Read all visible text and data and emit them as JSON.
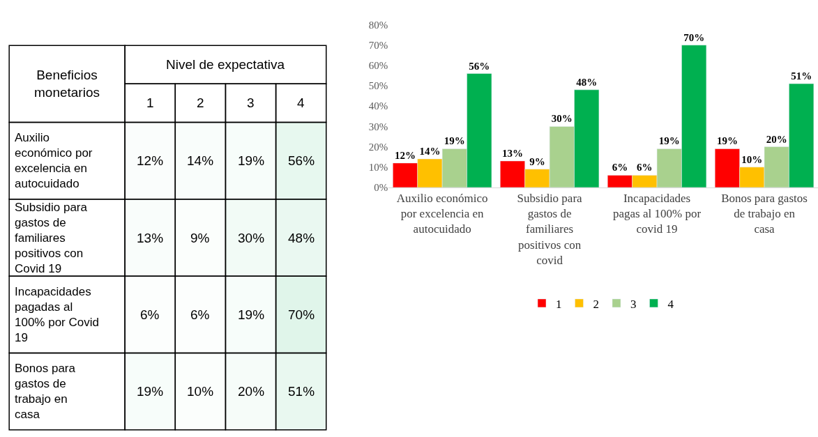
{
  "chart_data": [
    {
      "type": "heatmap",
      "xlabel": "Nivel de expectativa",
      "ylabel": "Beneficios monetarios",
      "categories": [
        "1",
        "2",
        "3",
        "4"
      ],
      "y_categories": [
        "Auxilio económico por excelencia en autocuidado",
        "Subsidio para gastos de familiares positivos con Covid 19",
        "Incapacidades pagadas al 100% por Covid 19",
        "Bonos para gastos de trabajo en casa"
      ],
      "cells": [
        [
          12,
          14,
          19,
          56
        ],
        [
          13,
          9,
          30,
          48
        ],
        [
          6,
          6,
          19,
          70
        ],
        [
          19,
          10,
          20,
          51
        ]
      ],
      "cell_labels": [
        [
          "12%",
          "14%",
          "19%",
          "56%"
        ],
        [
          "13%",
          "9%",
          "30%",
          "48%"
        ],
        [
          "6%",
          "6%",
          "19%",
          "70%"
        ],
        [
          "19%",
          "10%",
          "20%",
          "51%"
        ]
      ]
    },
    {
      "type": "bar",
      "categories": [
        "Auxilio económico por excelencia en autocuidado",
        "Subsidio para gastos de familiares positivos con covid",
        "Incapacidades pagas al 100% por covid 19",
        "Bonos para gastos de trabajo en casa"
      ],
      "series": [
        {
          "name": "1",
          "color": "#ff0000",
          "values": [
            12,
            13,
            6,
            19
          ],
          "value_labels": [
            "12%",
            "13%",
            "6%",
            "19%"
          ]
        },
        {
          "name": "2",
          "color": "#ffc000",
          "values": [
            14,
            9,
            6,
            10
          ],
          "value_labels": [
            "14%",
            "9%",
            "6%",
            "10%"
          ]
        },
        {
          "name": "3",
          "color": "#a9d18e",
          "values": [
            19,
            30,
            19,
            20
          ],
          "value_labels": [
            "19%",
            "30%",
            "19%",
            "20%"
          ]
        },
        {
          "name": "4",
          "color": "#00b050",
          "values": [
            56,
            48,
            70,
            51
          ],
          "value_labels": [
            "56%",
            "48%",
            "70%",
            "51%"
          ]
        }
      ],
      "ylim": [
        0,
        80
      ],
      "yticks": [
        {
          "value": 0,
          "label": "0%"
        },
        {
          "value": 10,
          "label": "10%"
        },
        {
          "value": 20,
          "label": "20%"
        },
        {
          "value": 30,
          "label": "30%"
        },
        {
          "value": 40,
          "label": "40%"
        },
        {
          "value": 50,
          "label": "50%"
        },
        {
          "value": 60,
          "label": "60%"
        },
        {
          "value": 70,
          "label": "70%"
        },
        {
          "value": 80,
          "label": "80%"
        }
      ],
      "grid": false,
      "legend": "bottom"
    }
  ]
}
